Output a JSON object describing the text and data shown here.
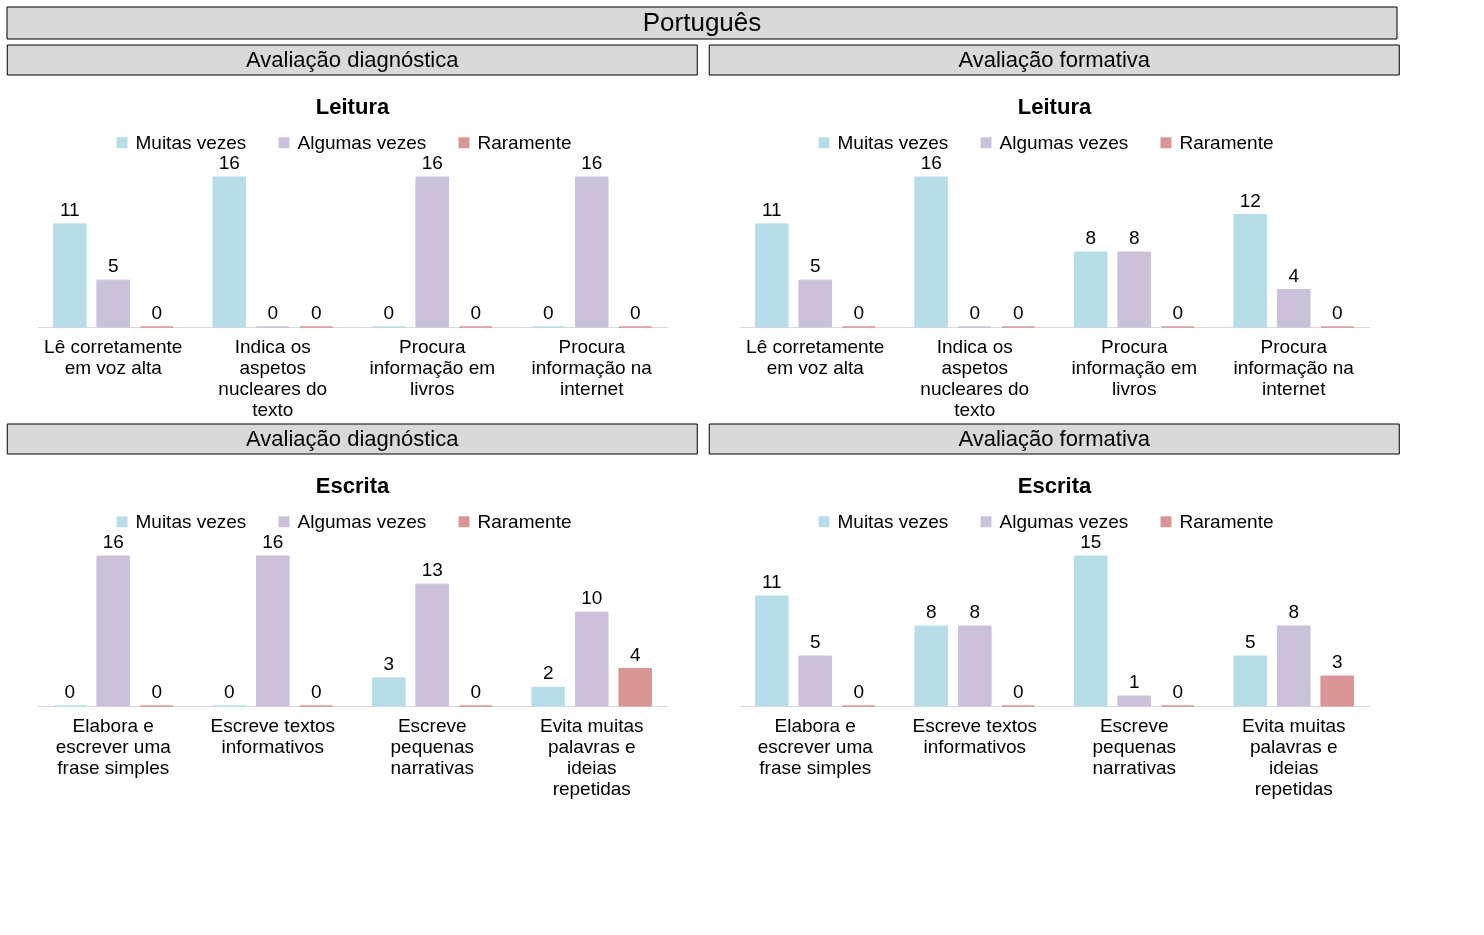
{
  "chart_data": [
    {
      "type": "bar",
      "title": "Leitura",
      "annotations": [
        "Português",
        "Avaliação diagnóstica"
      ],
      "categories": [
        "Lê corretamente em voz alta",
        "Indica os aspetos nucleares do texto",
        "Procura informação em livros",
        "Procura informação na internet"
      ],
      "series": [
        {
          "name": "Muitas vezes",
          "color": "#b7dee8",
          "values": [
            11,
            16,
            0,
            0
          ]
        },
        {
          "name": "Algumas vezes",
          "color": "#ccc1da",
          "values": [
            5,
            0,
            16,
            16
          ]
        },
        {
          "name": "Raramente",
          "color": "#d99694",
          "values": [
            0,
            0,
            0,
            0
          ]
        }
      ],
      "data_labels": true,
      "legend": "top"
    },
    {
      "type": "bar",
      "title": "Leitura",
      "annotations": [
        "Avaliação formativa"
      ],
      "categories": [
        "Lê corretamente em voz alta",
        "Indica os aspetos nucleares do texto",
        "Procura informação em livros",
        "Procura informação na internet"
      ],
      "series": [
        {
          "name": "Muitas vezes",
          "color": "#b7dee8",
          "values": [
            11,
            16,
            8,
            12
          ]
        },
        {
          "name": "Algumas vezes",
          "color": "#ccc1da",
          "values": [
            5,
            0,
            8,
            4
          ]
        },
        {
          "name": "Raramente",
          "color": "#d99694",
          "values": [
            0,
            0,
            0,
            0
          ]
        }
      ],
      "data_labels": true,
      "legend": "top"
    },
    {
      "type": "bar",
      "title": "Escrita",
      "annotations": [
        "Avaliação diagnóstica"
      ],
      "categories": [
        "Elabora e escrever uma frase simples",
        "Escreve textos informativos",
        "Escreve pequenas narrativas",
        "Evita muitas palavras e ideias repetidas"
      ],
      "series": [
        {
          "name": "Muitas vezes",
          "color": "#b7dee8",
          "values": [
            0,
            0,
            3,
            2
          ]
        },
        {
          "name": "Algumas vezes",
          "color": "#ccc1da",
          "values": [
            16,
            16,
            13,
            10
          ]
        },
        {
          "name": "Raramente",
          "color": "#d99694",
          "values": [
            0,
            0,
            0,
            4
          ]
        }
      ],
      "data_labels": true,
      "legend": "top"
    },
    {
      "type": "bar",
      "title": "Escrita",
      "annotations": [
        "Avaliação formativa"
      ],
      "categories": [
        "Elabora e escrever uma frase simples",
        "Escreve textos informativos",
        "Escreve pequenas narrativas",
        "Evita muitas palavras e ideias repetidas"
      ],
      "series": [
        {
          "name": "Muitas vezes",
          "color": "#b7dee8",
          "values": [
            11,
            8,
            15,
            5
          ]
        },
        {
          "name": "Algumas vezes",
          "color": "#ccc1da",
          "values": [
            5,
            8,
            1,
            8
          ]
        },
        {
          "name": "Raramente",
          "color": "#d99694",
          "values": [
            0,
            0,
            0,
            3
          ]
        }
      ],
      "data_labels": true,
      "legend": "top"
    }
  ]
}
